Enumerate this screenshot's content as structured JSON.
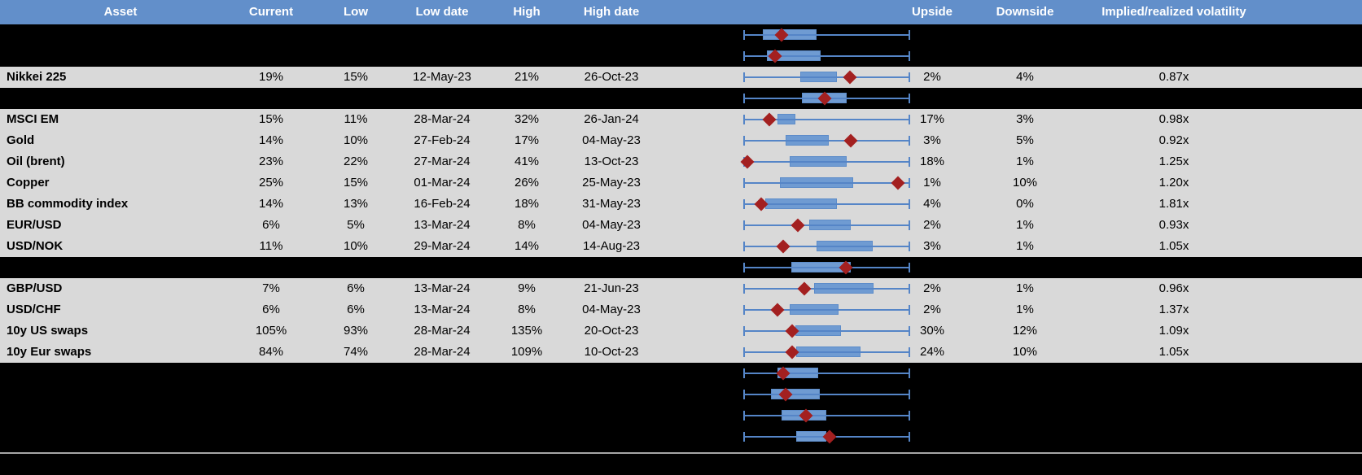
{
  "colors": {
    "header_bg": "#628fca",
    "header_text": "#ffffff",
    "row_bg": "#d9d9d9",
    "redacted_row_bg": "#000000",
    "box_fill": "#6f9bd2",
    "whisker_line": "#5585c7",
    "diamond_marker": "#a32020",
    "footer_separator": "#a6a6a6",
    "cell_text": "#000000"
  },
  "header": {
    "asset": "Asset",
    "current": "Current",
    "low": "Low",
    "low_date": "Low date",
    "high": "High",
    "high_date": "High date",
    "upside": "Upside",
    "downside": "Downside",
    "vol": "Implied/realized volatility"
  },
  "chart_data": {
    "type": "table",
    "columns": [
      "Asset",
      "Current",
      "Low",
      "Low date",
      "High",
      "High date",
      "Upside",
      "Downside",
      "Implied/realized volatility"
    ],
    "embedded_plot": {
      "type": "boxplot",
      "orientation": "horizontal",
      "units": "percent_of_whisker_range",
      "whisker_range": [
        0,
        100
      ],
      "marker": "diamond",
      "note_fields": "box.q1 and box.q3 are box edges, box.value is the red diamond position, as % of each row's whisker span"
    },
    "rows": [
      {
        "hidden": true,
        "box": {
          "q1": 11.6,
          "q3": 44.1,
          "value": 22.9
        }
      },
      {
        "hidden": true,
        "box": {
          "q1": 14.0,
          "q3": 46.5,
          "value": 18.9
        }
      },
      {
        "hidden": false,
        "asset": "Nikkei 225",
        "current": "19%",
        "low": "15%",
        "low_date": "12-May-23",
        "high": "21%",
        "high_date": "26-Oct-23",
        "upside": "2%",
        "downside": "4%",
        "vol": "0.87x",
        "box": {
          "q1": 34.1,
          "q3": 56.1,
          "value": 63.9
        }
      },
      {
        "hidden": true,
        "box": {
          "q1": 35.1,
          "q3": 62.0,
          "value": 48.8
        }
      },
      {
        "hidden": false,
        "asset": "MSCI EM",
        "current": "15%",
        "low": "11%",
        "low_date": "28-Mar-24",
        "high": "32%",
        "high_date": "26-Jan-24",
        "upside": "17%",
        "downside": "3%",
        "vol": "0.98x",
        "box": {
          "q1": 20.5,
          "q3": 31.2,
          "value": 15.6
        }
      },
      {
        "hidden": false,
        "asset": "Gold",
        "current": "14%",
        "low": "10%",
        "low_date": "27-Feb-24",
        "high": "17%",
        "high_date": "04-May-23",
        "upside": "3%",
        "downside": "5%",
        "vol": "0.92x",
        "box": {
          "q1": 25.4,
          "q3": 51.2,
          "value": 64.4
        }
      },
      {
        "hidden": false,
        "asset": "Oil (brent)",
        "current": "23%",
        "low": "22%",
        "low_date": "27-Mar-24",
        "high": "41%",
        "high_date": "13-Oct-23",
        "upside": "18%",
        "downside": "1%",
        "vol": "1.25x",
        "box": {
          "q1": 27.8,
          "q3": 62.0,
          "value": 2.4
        }
      },
      {
        "hidden": false,
        "asset": "Copper",
        "current": "25%",
        "low": "15%",
        "low_date": "01-Mar-24",
        "high": "26%",
        "high_date": "25-May-23",
        "upside": "1%",
        "downside": "10%",
        "vol": "1.20x",
        "box": {
          "q1": 22.0,
          "q3": 65.9,
          "value": 92.7
        }
      },
      {
        "hidden": false,
        "asset": "BB commodity index",
        "current": "14%",
        "low": "13%",
        "low_date": "16-Feb-24",
        "high": "18%",
        "high_date": "31-May-23",
        "upside": "4%",
        "downside": "0%",
        "vol": "1.81x",
        "box": {
          "q1": 13.2,
          "q3": 56.1,
          "value": 10.7
        }
      },
      {
        "hidden": false,
        "asset": "EUR/USD",
        "current": "6%",
        "low": "5%",
        "low_date": "13-Mar-24",
        "high": "8%",
        "high_date": "04-May-23",
        "upside": "2%",
        "downside": "1%",
        "vol": "0.93x",
        "box": {
          "q1": 39.5,
          "q3": 64.4,
          "value": 32.7
        }
      },
      {
        "hidden": false,
        "asset": "USD/NOK",
        "current": "11%",
        "low": "10%",
        "low_date": "29-Mar-24",
        "high": "14%",
        "high_date": "14-Aug-23",
        "upside": "3%",
        "downside": "1%",
        "vol": "1.05x",
        "box": {
          "q1": 43.9,
          "q3": 77.6,
          "value": 23.9
        }
      },
      {
        "hidden": true,
        "box": {
          "q1": 28.8,
          "q3": 64.4,
          "value": 61.5
        }
      },
      {
        "hidden": false,
        "asset": "GBP/USD",
        "current": "7%",
        "low": "6%",
        "low_date": "13-Mar-24",
        "high": "9%",
        "high_date": "21-Jun-23",
        "upside": "2%",
        "downside": "1%",
        "vol": "0.96x",
        "box": {
          "q1": 42.4,
          "q3": 78.0,
          "value": 36.6
        }
      },
      {
        "hidden": false,
        "asset": "USD/CHF",
        "current": "6%",
        "low": "6%",
        "low_date": "13-Mar-24",
        "high": "8%",
        "high_date": "04-May-23",
        "upside": "2%",
        "downside": "1%",
        "vol": "1.37x",
        "box": {
          "q1": 27.8,
          "q3": 57.1,
          "value": 20.5
        }
      },
      {
        "hidden": false,
        "asset": "10y US swaps",
        "current": "105%",
        "low": "93%",
        "low_date": "28-Mar-24",
        "high": "135%",
        "high_date": "20-Oct-23",
        "upside": "30%",
        "downside": "12%",
        "vol": "1.09x",
        "box": {
          "q1": 31.1,
          "q3": 58.5,
          "value": 29.3
        }
      },
      {
        "hidden": false,
        "asset": "10y Eur swaps",
        "current": "84%",
        "low": "74%",
        "low_date": "28-Mar-24",
        "high": "109%",
        "high_date": "10-Oct-23",
        "upside": "24%",
        "downside": "10%",
        "vol": "1.05x",
        "box": {
          "q1": 31.7,
          "q3": 70.2,
          "value": 29.3
        }
      },
      {
        "hidden": true,
        "box": {
          "q1": 20.5,
          "q3": 44.9,
          "value": 23.9
        }
      },
      {
        "hidden": true,
        "box": {
          "q1": 16.6,
          "q3": 45.9,
          "value": 25.4
        }
      },
      {
        "hidden": true,
        "box": {
          "q1": 22.9,
          "q3": 49.8,
          "value": 37.6
        }
      },
      {
        "hidden": true,
        "box": {
          "q1": 31.7,
          "q3": 49.8,
          "value": 51.7
        }
      }
    ]
  }
}
